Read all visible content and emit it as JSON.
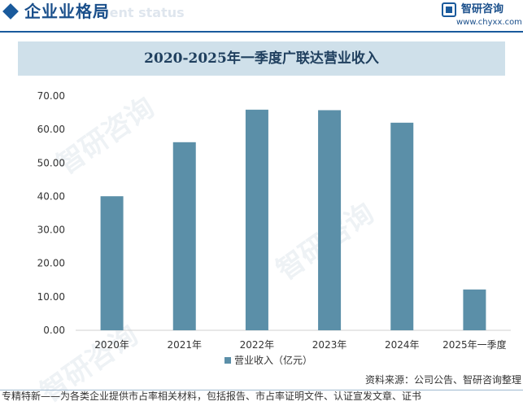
{
  "header": {
    "section_title": "企业业格局",
    "section_ghost": "ment status",
    "brand_name": "智研咨询",
    "brand_url": "www.chyxx.com"
  },
  "watermark_text": "智研咨询",
  "chart_data": {
    "type": "bar",
    "title": "2020-2025年一季度广联达营业收入",
    "categories": [
      "2020年",
      "2021年",
      "2022年",
      "2023年",
      "2024年",
      "2025年一季度"
    ],
    "series": [
      {
        "name": "营业收入（亿元）",
        "values": [
          40.05,
          56.19,
          65.91,
          65.76,
          62.02,
          12.19
        ],
        "color": "#5b8fa8"
      }
    ],
    "ylim": [
      0,
      70
    ],
    "yticks": [
      "0.00",
      "10.00",
      "20.00",
      "30.00",
      "40.00",
      "50.00",
      "60.00",
      "70.00"
    ],
    "xlabel": "",
    "ylabel": "",
    "grid": false,
    "legend_position": "bottom"
  },
  "footer": {
    "source": "资料来源：公司公告、智研咨询整理",
    "note": "专精特新——为各类企业提供市占率相关材料，包括报告、市占率证明文件、认证宣发文章、证书"
  }
}
